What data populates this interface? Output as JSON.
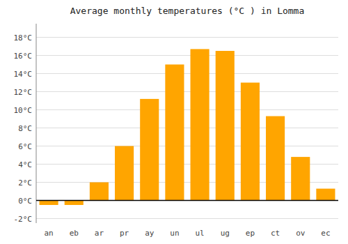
{
  "chart_data": {
    "type": "bar",
    "title": "Average monthly temperatures (°C ) in Lomma",
    "categories": [
      "an",
      "eb",
      "ar",
      "pr",
      "ay",
      "un",
      "ul",
      "ug",
      "ep",
      "ct",
      "ov",
      "ec"
    ],
    "values": [
      -0.5,
      -0.5,
      2.0,
      6.0,
      11.2,
      15.0,
      16.7,
      16.5,
      13.0,
      9.3,
      4.8,
      1.3
    ],
    "color": "#FFA500",
    "ylim": [
      -2.5,
      19.5
    ],
    "yticks": [
      {
        "value": -2,
        "label": "-2°C"
      },
      {
        "value": 0,
        "label": "0°C"
      },
      {
        "value": 2,
        "label": "2°C"
      },
      {
        "value": 4,
        "label": "4°C"
      },
      {
        "value": 6,
        "label": "6°C"
      },
      {
        "value": 8,
        "label": "8°C"
      },
      {
        "value": 10,
        "label": "10°C"
      },
      {
        "value": 12,
        "label": "12°C"
      },
      {
        "value": 14,
        "label": "14°C"
      },
      {
        "value": 16,
        "label": "16°C"
      },
      {
        "value": 18,
        "label": "18°C"
      }
    ],
    "grid": true
  }
}
